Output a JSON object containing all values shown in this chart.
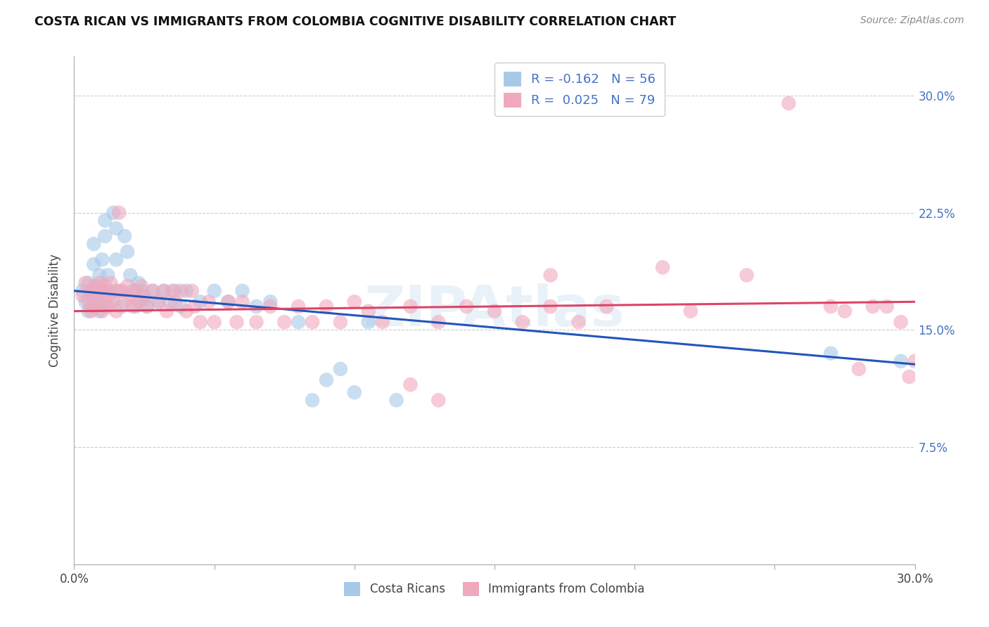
{
  "title": "COSTA RICAN VS IMMIGRANTS FROM COLOMBIA COGNITIVE DISABILITY CORRELATION CHART",
  "source": "Source: ZipAtlas.com",
  "ylabel": "Cognitive Disability",
  "y_tick_labels": [
    "",
    "7.5%",
    "15.0%",
    "22.5%",
    "30.0%"
  ],
  "y_tick_values": [
    0.0,
    0.075,
    0.15,
    0.225,
    0.3
  ],
  "xlim": [
    0.0,
    0.3
  ],
  "ylim": [
    0.0,
    0.325
  ],
  "legend_label1": "Costa Ricans",
  "legend_label2": "Immigrants from Colombia",
  "watermark": "ZIPAtlas",
  "blue_color": "#a8c8e8",
  "pink_color": "#f0a8bc",
  "line_blue": "#2255bb",
  "line_pink": "#dd4466",
  "blue_line_start": 0.175,
  "blue_line_end": 0.128,
  "pink_line_start": 0.162,
  "pink_line_end": 0.168,
  "legend_r1": "R = -0.162",
  "legend_n1": "N = 56",
  "legend_r2": "R =  0.025",
  "legend_n2": "N = 79",
  "blue_scatter": [
    [
      0.003,
      0.175
    ],
    [
      0.004,
      0.168
    ],
    [
      0.005,
      0.18
    ],
    [
      0.005,
      0.162
    ],
    [
      0.006,
      0.172
    ],
    [
      0.006,
      0.165
    ],
    [
      0.007,
      0.205
    ],
    [
      0.007,
      0.192
    ],
    [
      0.008,
      0.178
    ],
    [
      0.008,
      0.168
    ],
    [
      0.009,
      0.185
    ],
    [
      0.009,
      0.162
    ],
    [
      0.01,
      0.195
    ],
    [
      0.01,
      0.175
    ],
    [
      0.01,
      0.165
    ],
    [
      0.011,
      0.22
    ],
    [
      0.011,
      0.21
    ],
    [
      0.012,
      0.185
    ],
    [
      0.012,
      0.175
    ],
    [
      0.013,
      0.168
    ],
    [
      0.014,
      0.225
    ],
    [
      0.015,
      0.215
    ],
    [
      0.015,
      0.195
    ],
    [
      0.016,
      0.175
    ],
    [
      0.017,
      0.165
    ],
    [
      0.018,
      0.21
    ],
    [
      0.019,
      0.2
    ],
    [
      0.02,
      0.185
    ],
    [
      0.021,
      0.175
    ],
    [
      0.022,
      0.165
    ],
    [
      0.023,
      0.18
    ],
    [
      0.024,
      0.175
    ],
    [
      0.025,
      0.17
    ],
    [
      0.026,
      0.165
    ],
    [
      0.028,
      0.175
    ],
    [
      0.03,
      0.168
    ],
    [
      0.032,
      0.175
    ],
    [
      0.034,
      0.168
    ],
    [
      0.036,
      0.175
    ],
    [
      0.038,
      0.165
    ],
    [
      0.04,
      0.175
    ],
    [
      0.045,
      0.168
    ],
    [
      0.05,
      0.175
    ],
    [
      0.055,
      0.168
    ],
    [
      0.06,
      0.175
    ],
    [
      0.065,
      0.165
    ],
    [
      0.07,
      0.168
    ],
    [
      0.08,
      0.155
    ],
    [
      0.085,
      0.105
    ],
    [
      0.09,
      0.118
    ],
    [
      0.095,
      0.125
    ],
    [
      0.1,
      0.11
    ],
    [
      0.105,
      0.155
    ],
    [
      0.115,
      0.105
    ],
    [
      0.27,
      0.135
    ],
    [
      0.295,
      0.13
    ]
  ],
  "pink_scatter": [
    [
      0.003,
      0.172
    ],
    [
      0.004,
      0.18
    ],
    [
      0.005,
      0.168
    ],
    [
      0.006,
      0.175
    ],
    [
      0.006,
      0.162
    ],
    [
      0.007,
      0.178
    ],
    [
      0.007,
      0.165
    ],
    [
      0.008,
      0.172
    ],
    [
      0.009,
      0.18
    ],
    [
      0.009,
      0.168
    ],
    [
      0.01,
      0.175
    ],
    [
      0.01,
      0.162
    ],
    [
      0.011,
      0.178
    ],
    [
      0.012,
      0.172
    ],
    [
      0.012,
      0.165
    ],
    [
      0.013,
      0.18
    ],
    [
      0.014,
      0.168
    ],
    [
      0.015,
      0.175
    ],
    [
      0.015,
      0.162
    ],
    [
      0.016,
      0.225
    ],
    [
      0.017,
      0.175
    ],
    [
      0.018,
      0.168
    ],
    [
      0.019,
      0.178
    ],
    [
      0.02,
      0.172
    ],
    [
      0.021,
      0.165
    ],
    [
      0.022,
      0.175
    ],
    [
      0.023,
      0.168
    ],
    [
      0.024,
      0.178
    ],
    [
      0.025,
      0.172
    ],
    [
      0.026,
      0.165
    ],
    [
      0.028,
      0.175
    ],
    [
      0.03,
      0.168
    ],
    [
      0.032,
      0.175
    ],
    [
      0.033,
      0.162
    ],
    [
      0.035,
      0.175
    ],
    [
      0.036,
      0.168
    ],
    [
      0.038,
      0.175
    ],
    [
      0.04,
      0.162
    ],
    [
      0.042,
      0.175
    ],
    [
      0.043,
      0.165
    ],
    [
      0.045,
      0.155
    ],
    [
      0.048,
      0.168
    ],
    [
      0.05,
      0.155
    ],
    [
      0.055,
      0.168
    ],
    [
      0.058,
      0.155
    ],
    [
      0.06,
      0.168
    ],
    [
      0.065,
      0.155
    ],
    [
      0.07,
      0.165
    ],
    [
      0.075,
      0.155
    ],
    [
      0.08,
      0.165
    ],
    [
      0.085,
      0.155
    ],
    [
      0.09,
      0.165
    ],
    [
      0.095,
      0.155
    ],
    [
      0.1,
      0.168
    ],
    [
      0.105,
      0.162
    ],
    [
      0.11,
      0.155
    ],
    [
      0.12,
      0.165
    ],
    [
      0.13,
      0.155
    ],
    [
      0.14,
      0.165
    ],
    [
      0.15,
      0.162
    ],
    [
      0.16,
      0.155
    ],
    [
      0.17,
      0.165
    ],
    [
      0.18,
      0.155
    ],
    [
      0.19,
      0.165
    ],
    [
      0.13,
      0.105
    ],
    [
      0.22,
      0.162
    ],
    [
      0.24,
      0.185
    ],
    [
      0.255,
      0.295
    ],
    [
      0.27,
      0.165
    ],
    [
      0.275,
      0.162
    ],
    [
      0.28,
      0.125
    ],
    [
      0.285,
      0.165
    ],
    [
      0.29,
      0.165
    ],
    [
      0.295,
      0.155
    ],
    [
      0.298,
      0.12
    ],
    [
      0.3,
      0.13
    ],
    [
      0.17,
      0.185
    ],
    [
      0.21,
      0.19
    ],
    [
      0.12,
      0.115
    ]
  ]
}
